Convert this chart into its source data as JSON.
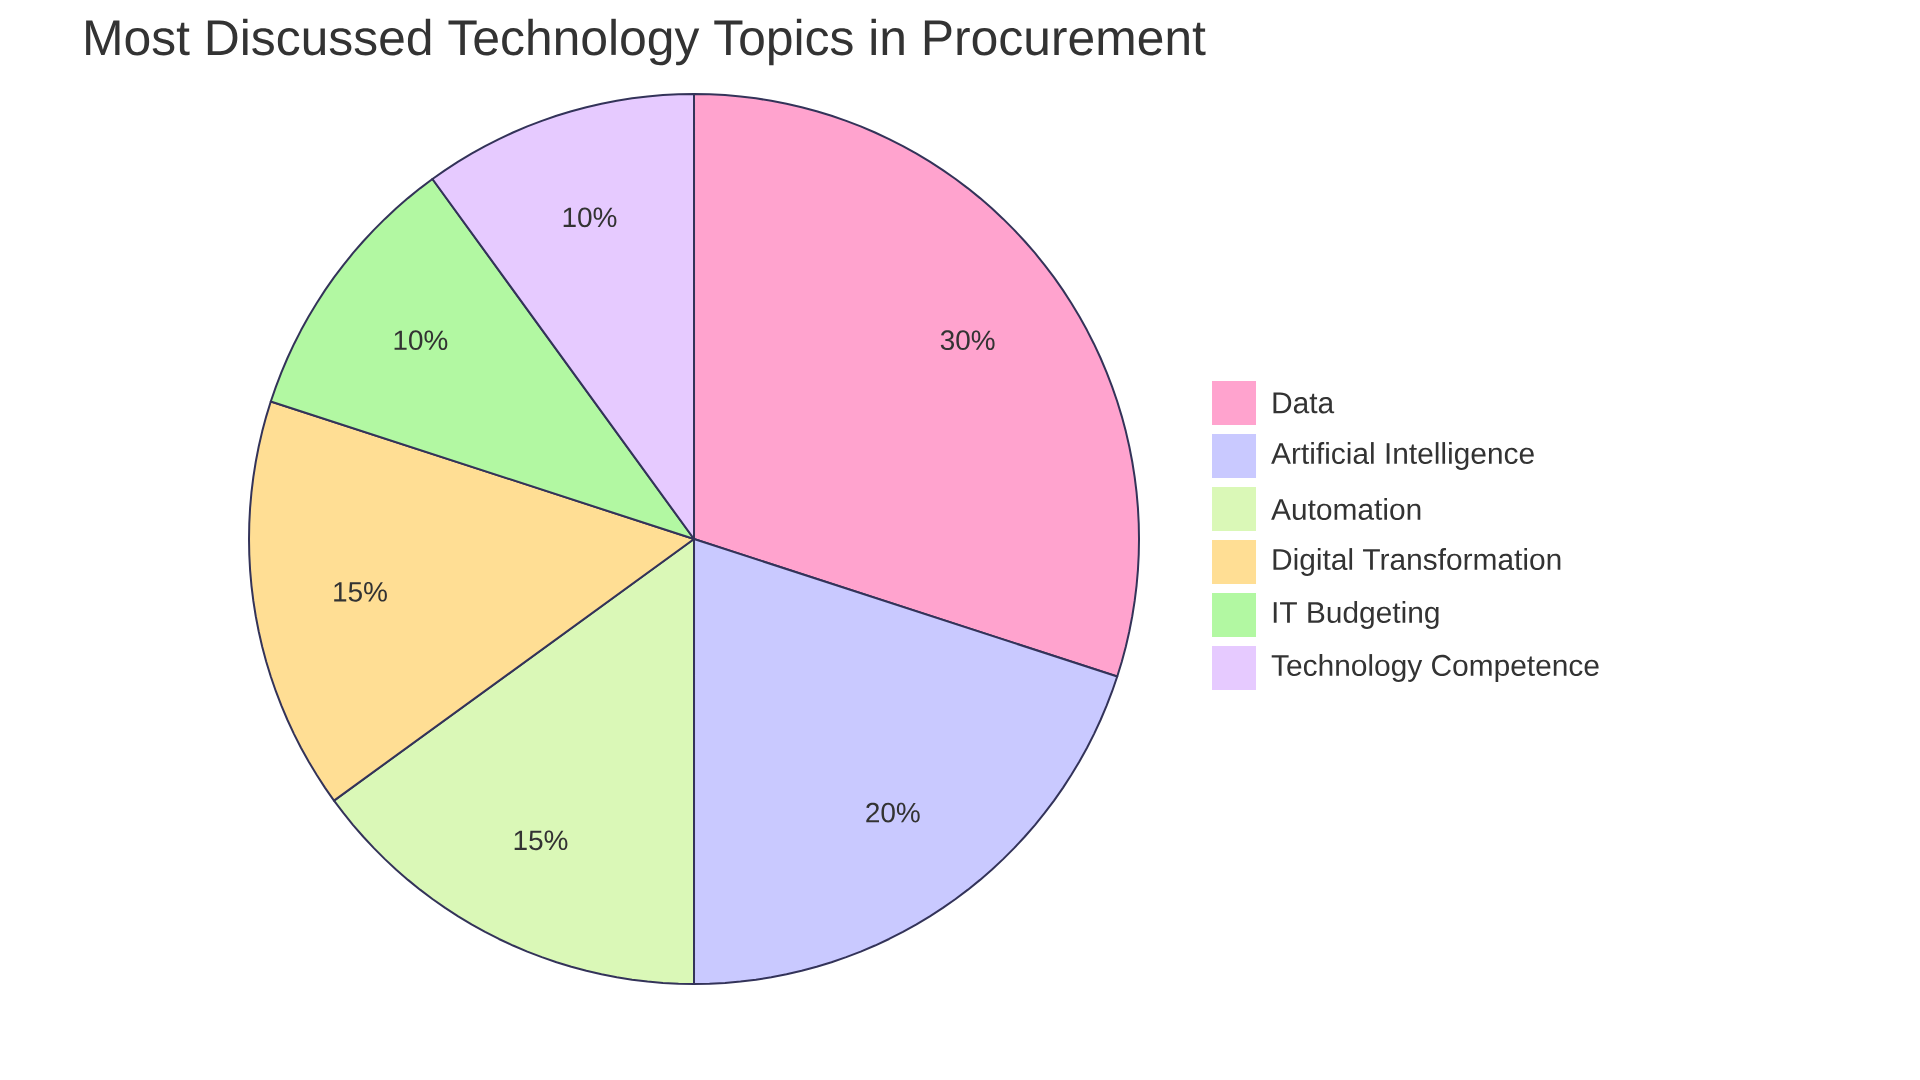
{
  "chart_data": {
    "type": "pie",
    "title": "Most Discussed Technology Topics in Procurement",
    "categories": [
      "Data",
      "Artificial Intelligence",
      "Automation",
      "Digital Transformation",
      "IT Budgeting",
      "Technology Competence"
    ],
    "values": [
      30,
      20,
      15,
      15,
      10,
      10
    ],
    "value_labels": [
      "30%",
      "20%",
      "15%",
      "15%",
      "10%",
      "10%"
    ],
    "colors": [
      "#ffa3ce",
      "#c9c9ff",
      "#daf8b7",
      "#ffde94",
      "#b2f8a2",
      "#e6caff"
    ],
    "legend": "right"
  }
}
